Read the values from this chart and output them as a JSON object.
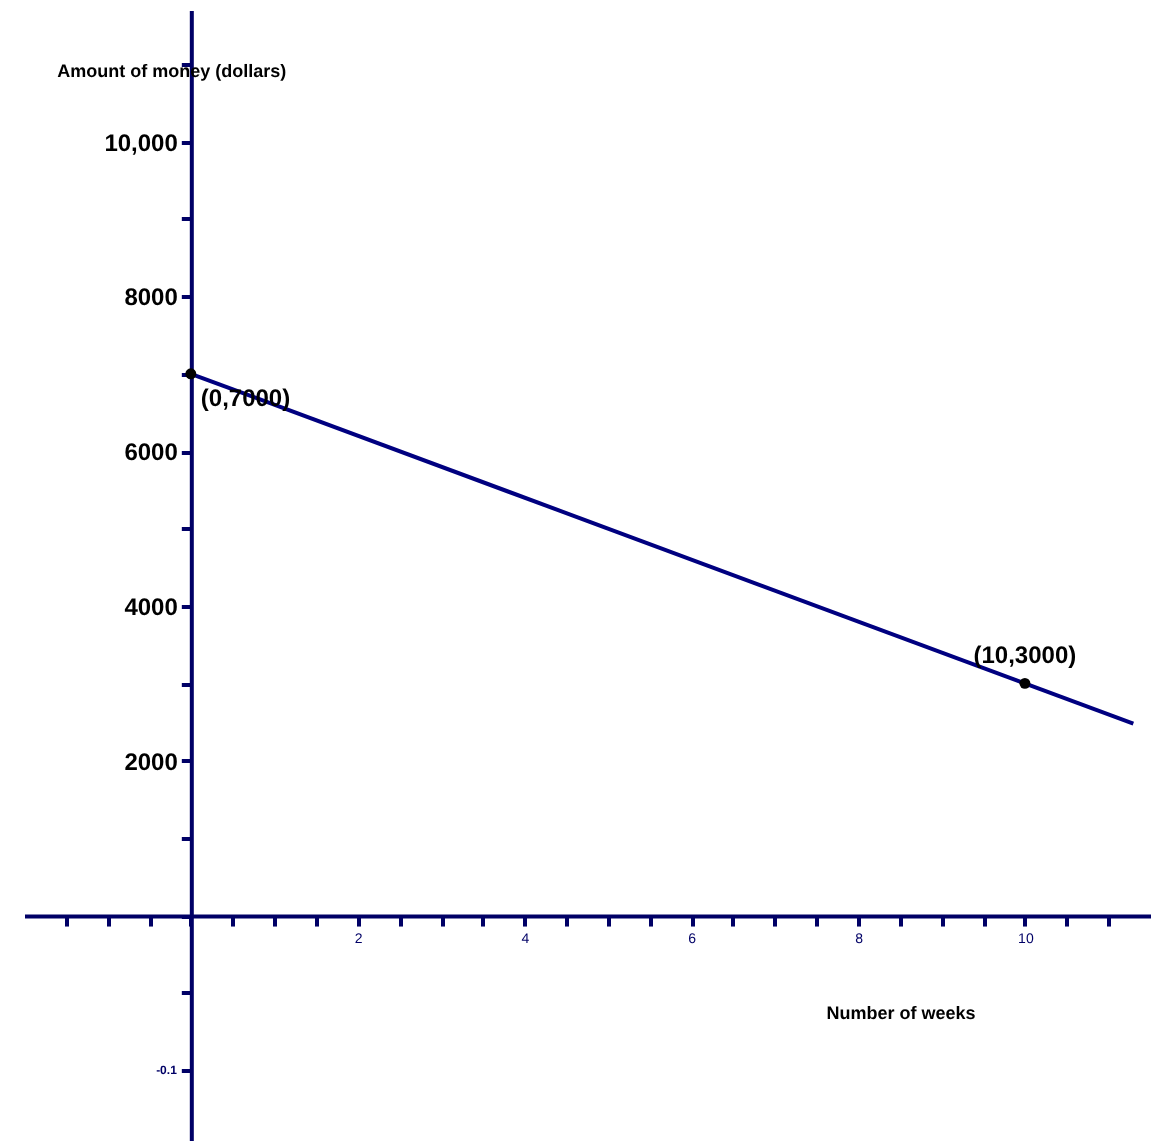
{
  "chart_data": {
    "type": "line",
    "xlabel": "Number of weeks",
    "ylabel": "Amount of money (dollars)",
    "xlim": [
      -2,
      11.5
    ],
    "ylim": [
      -2900,
      11700
    ],
    "xticks": [
      {
        "value": -1.5,
        "label": null
      },
      {
        "value": -1,
        "label": null
      },
      {
        "value": -0.5,
        "label": null
      },
      {
        "value": 0,
        "label": null
      },
      {
        "value": 0.5,
        "label": null
      },
      {
        "value": 1,
        "label": null
      },
      {
        "value": 1.5,
        "label": null
      },
      2,
      {
        "value": 2.5,
        "label": null
      },
      {
        "value": 3,
        "label": null
      },
      {
        "value": 3.5,
        "label": null
      },
      4,
      {
        "value": 4.5,
        "label": null
      },
      {
        "value": 5,
        "label": null
      },
      {
        "value": 5.5,
        "label": null
      },
      6,
      {
        "value": 6.5,
        "label": null
      },
      {
        "value": 7,
        "label": null
      },
      {
        "value": 7.5,
        "label": null
      },
      8,
      {
        "value": 8.5,
        "label": null
      },
      {
        "value": 9,
        "label": null
      },
      {
        "value": 9.5,
        "label": null
      },
      10,
      {
        "value": 10.5,
        "label": null
      },
      {
        "value": 11,
        "label": null
      }
    ],
    "yticks": [
      {
        "value": -2000,
        "label": null
      },
      {
        "value": -1000,
        "label": null
      },
      {
        "value": 0,
        "label": null
      },
      {
        "value": 1000,
        "label": null
      },
      2000,
      {
        "value": 3000,
        "label": null
      },
      4000,
      {
        "value": 5000,
        "label": null
      },
      6000,
      {
        "value": 7000,
        "label": null
      },
      8000,
      {
        "value": 9000,
        "label": null
      },
      {
        "value": 10000,
        "label": "10,000"
      },
      {
        "value": 11000,
        "label": null
      }
    ],
    "grid": false,
    "series": [
      {
        "color": "#000080",
        "x": [
          0,
          11.3
        ],
        "values": [
          7000,
          2480
        ],
        "marker": "none"
      },
      {
        "type": "scatter",
        "color": "#000000",
        "x": [
          0,
          10
        ],
        "values": [
          7000,
          3000
        ],
        "marker": "circle"
      }
    ],
    "annotations": [
      {
        "text": "(0,7000)",
        "x": 0,
        "y": 7000
      },
      {
        "text": "(10,3000)",
        "x": 10,
        "y": 3000
      },
      "-0.1"
    ]
  }
}
